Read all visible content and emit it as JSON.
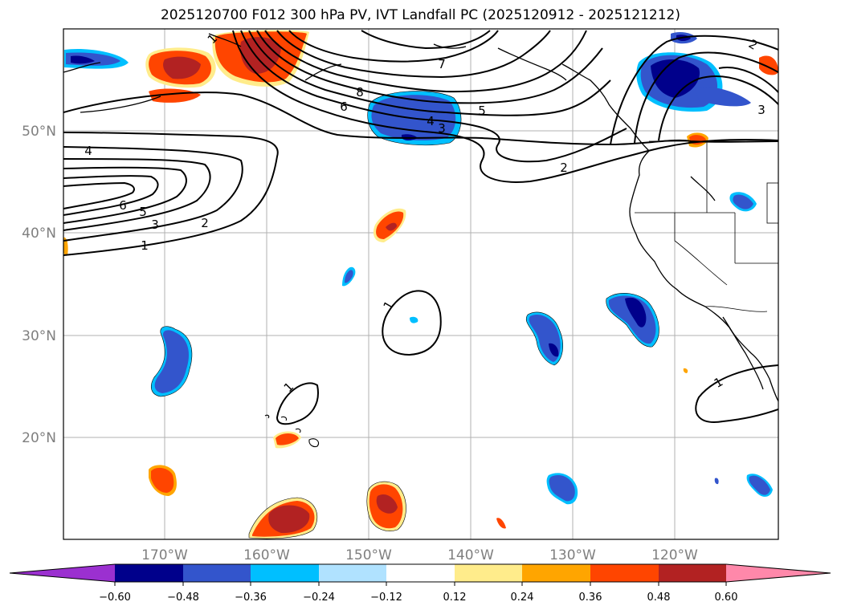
{
  "title": "2025120700 F012 300 hPa PV, IVT Landfall PC (2025120912 - 2025121212)",
  "axes": {
    "lon_ticks": [
      "170°W",
      "160°W",
      "150°W",
      "140°W",
      "130°W",
      "120°W"
    ],
    "lat_ticks": [
      "50°N",
      "40°N",
      "30°N",
      "20°N"
    ]
  },
  "contour_labels": [
    "1",
    "8",
    "7",
    "6",
    "5",
    "4",
    "3",
    "2",
    "4",
    "6",
    "5",
    "3",
    "2",
    "1",
    "1",
    "1",
    "1",
    "3",
    "2"
  ],
  "colorbar": {
    "ticks": [
      "−0.60",
      "−0.48",
      "−0.36",
      "−0.24",
      "−0.12",
      "0.12",
      "0.24",
      "0.36",
      "0.48",
      "0.60"
    ],
    "colors": [
      "#9b30d0",
      "#00008b",
      "#3355cc",
      "#00bfff",
      "#b0e2ff",
      "#ffffff",
      "#ffec8b",
      "#ffa500",
      "#ff4500",
      "#b22222",
      "#ff88aa"
    ],
    "extend": "both"
  },
  "colors": {
    "coast": "#000000",
    "grid": "#b0b0b0",
    "contour": "#000000"
  }
}
